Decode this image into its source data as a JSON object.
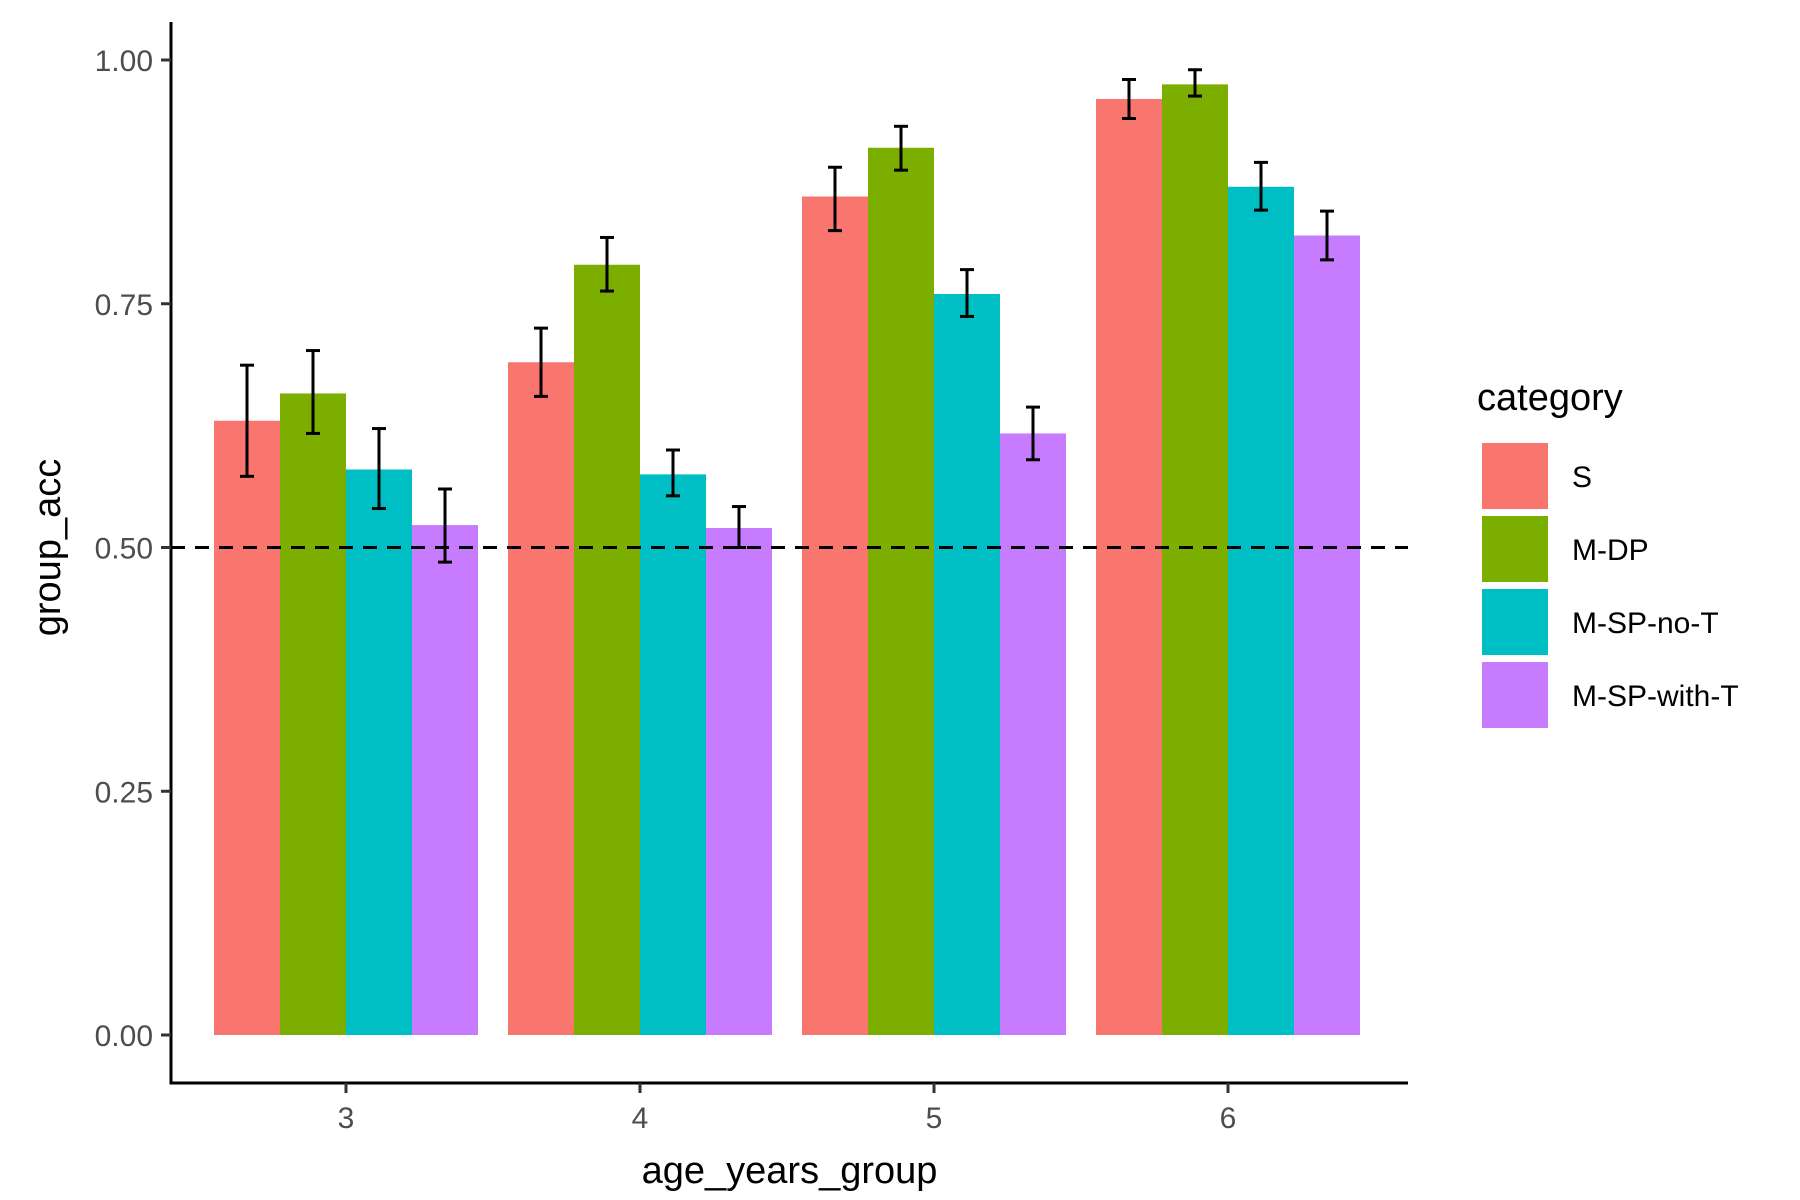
{
  "chart_data": {
    "type": "bar",
    "xlabel": "age_years_group",
    "ylabel": "group_acc",
    "categories": [
      "3",
      "4",
      "5",
      "6"
    ],
    "ylim": [
      0,
      1
    ],
    "yticks": [
      0.0,
      0.25,
      0.5,
      0.75,
      1.0
    ],
    "ytick_labels": [
      "0.00",
      "0.25",
      "0.50",
      "0.75",
      "1.00"
    ],
    "reference_line": {
      "y": 0.5,
      "style": "dashed"
    },
    "grid": false,
    "legend": {
      "title": "category",
      "position": "right"
    },
    "series": [
      {
        "name": "S",
        "color": "#F8766D",
        "values": [
          0.63,
          0.69,
          0.86,
          0.96
        ],
        "err_low": [
          0.573,
          0.655,
          0.825,
          0.94
        ],
        "err_high": [
          0.687,
          0.725,
          0.89,
          0.98
        ]
      },
      {
        "name": "M-DP",
        "color": "#7CAE00",
        "values": [
          0.658,
          0.79,
          0.91,
          0.975
        ],
        "err_low": [
          0.617,
          0.763,
          0.887,
          0.963
        ],
        "err_high": [
          0.702,
          0.818,
          0.932,
          0.99
        ]
      },
      {
        "name": "M-SP-no-T",
        "color": "#00BFC4",
        "values": [
          0.58,
          0.575,
          0.76,
          0.87
        ],
        "err_low": [
          0.54,
          0.553,
          0.737,
          0.846
        ],
        "err_high": [
          0.622,
          0.6,
          0.785,
          0.895
        ]
      },
      {
        "name": "M-SP-with-T",
        "color": "#C77CFF",
        "values": [
          0.523,
          0.52,
          0.617,
          0.82
        ],
        "err_low": [
          0.485,
          0.5,
          0.59,
          0.795
        ],
        "err_high": [
          0.56,
          0.542,
          0.644,
          0.845
        ]
      }
    ]
  }
}
